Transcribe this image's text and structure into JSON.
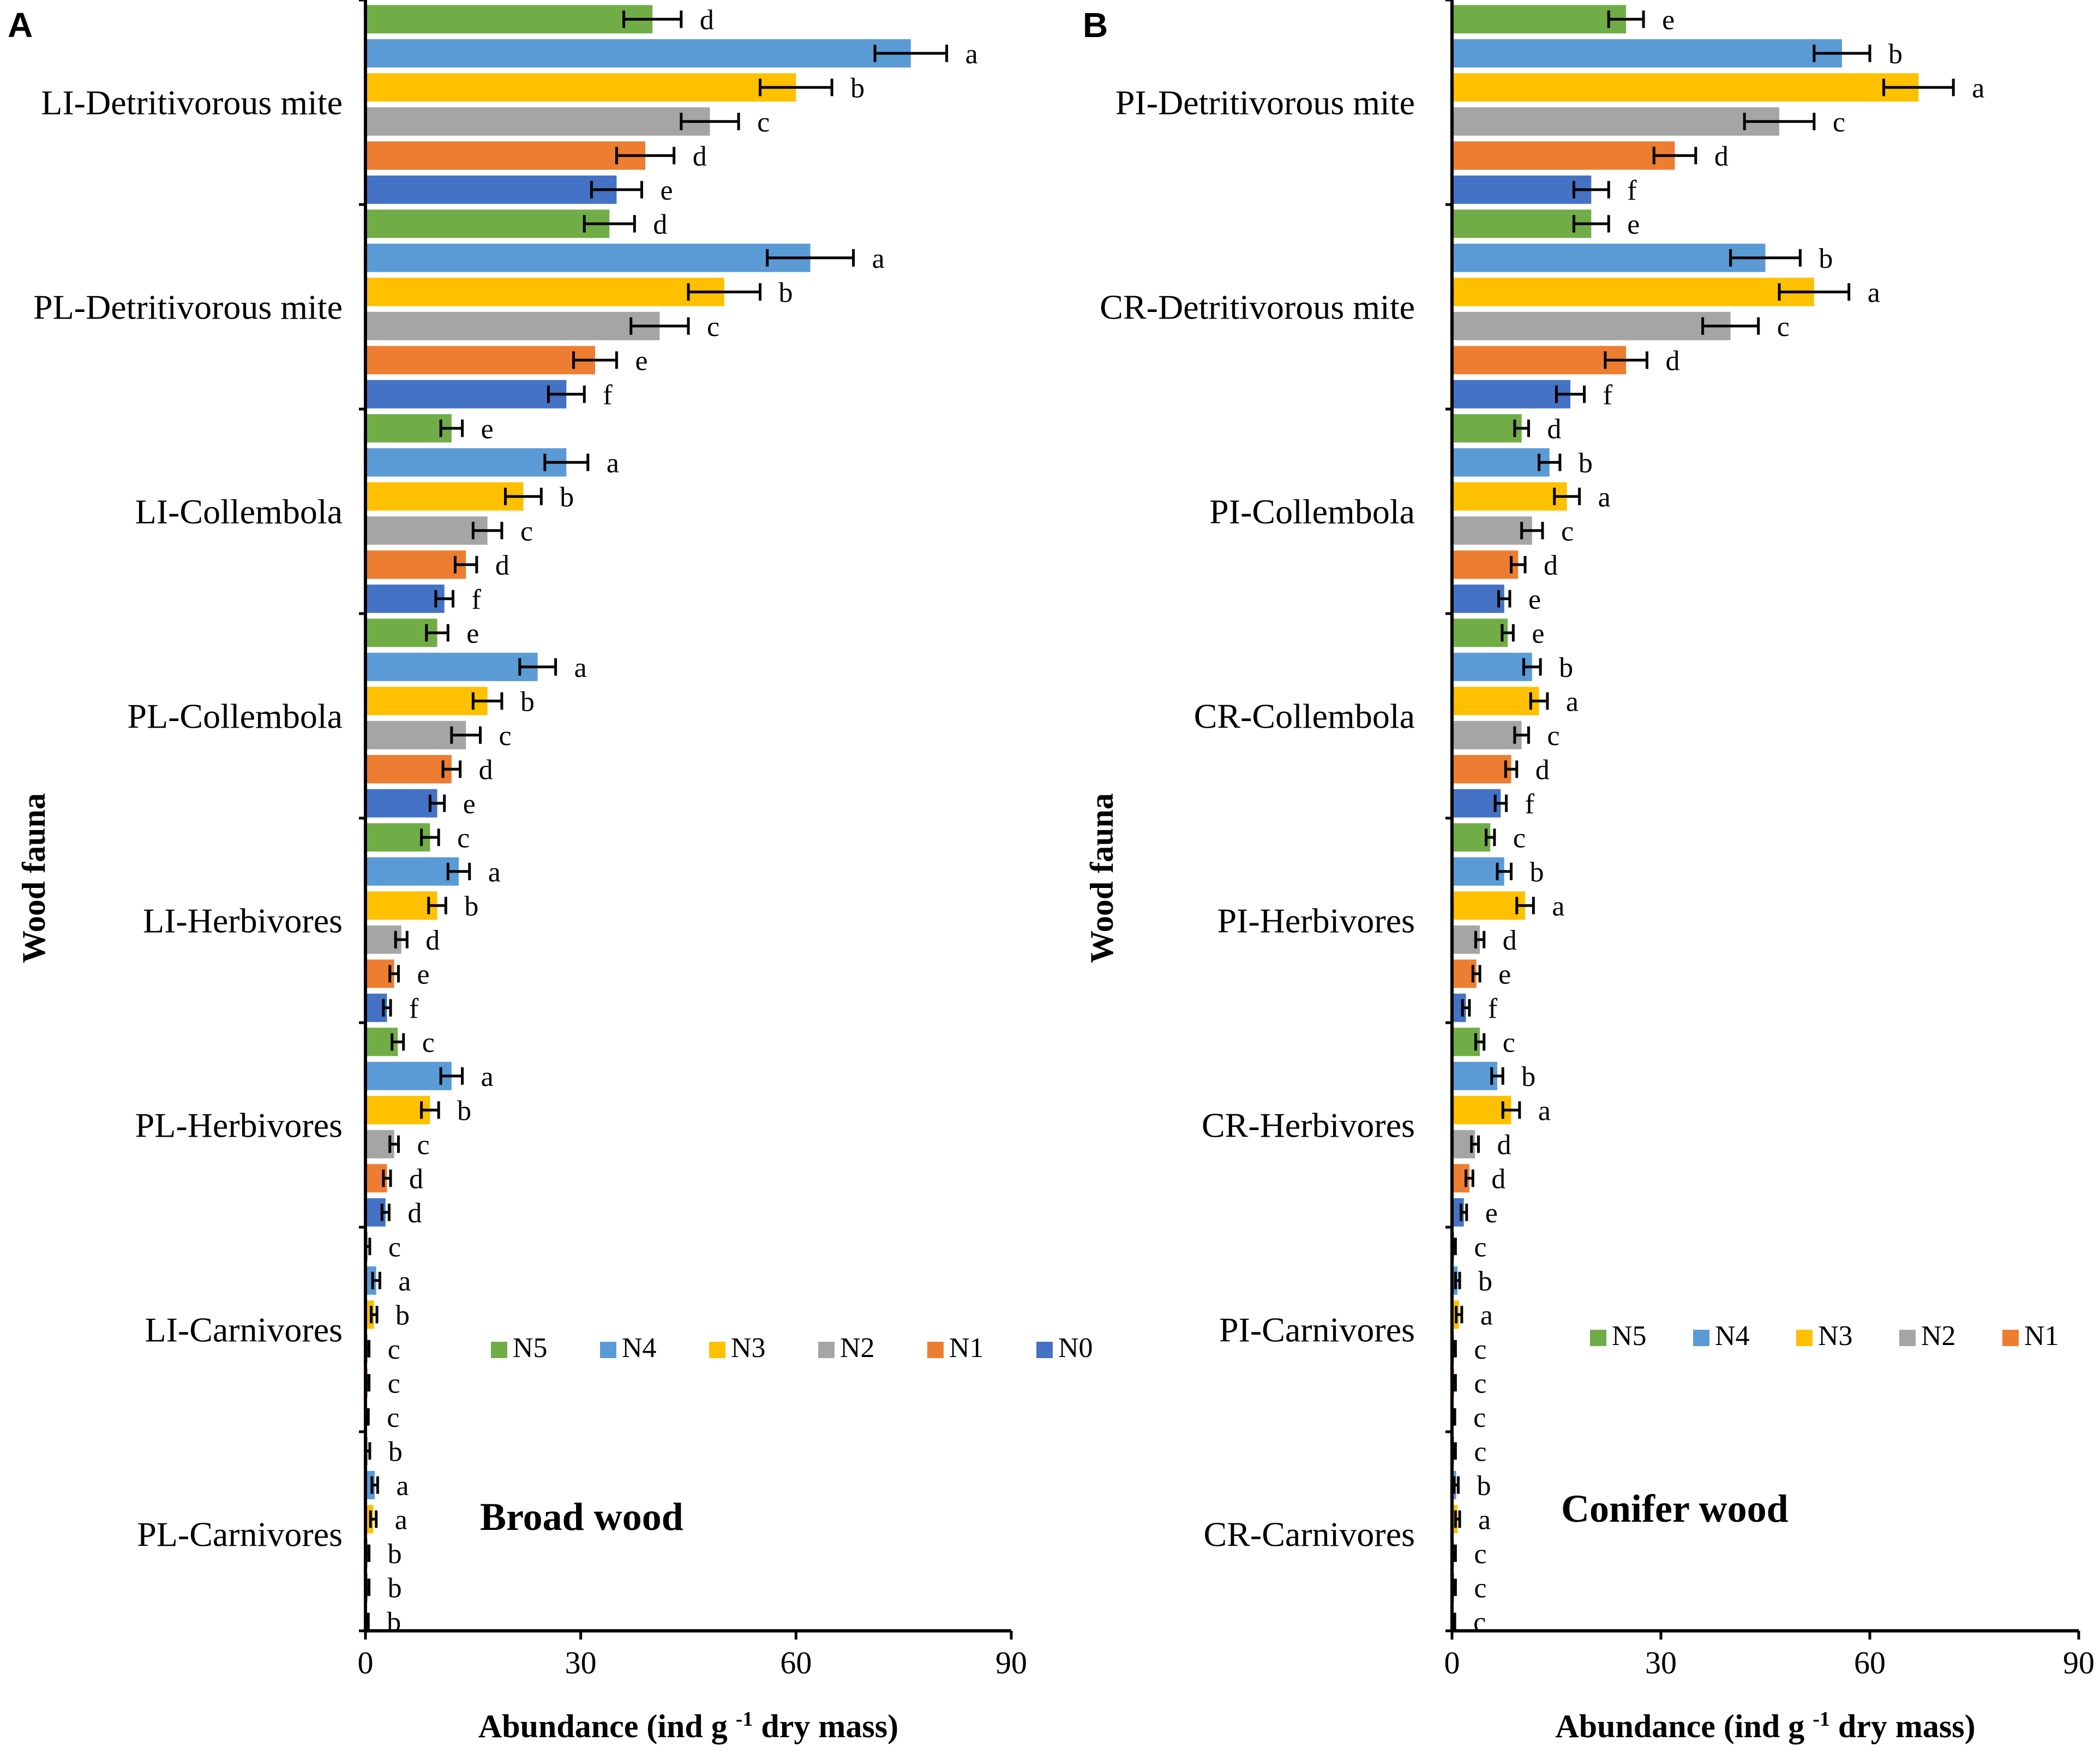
{
  "colors": {
    "N5": "#70AD47",
    "N4": "#5B9BD5",
    "N3": "#FFC000",
    "N2": "#A5A5A5",
    "N1": "#ED7D31",
    "N0": "#4472C4",
    "axis": "#000000"
  },
  "legend": [
    "N5",
    "N4",
    "N3",
    "N2",
    "N1",
    "N0"
  ],
  "y_axis_title": "Wood fauna",
  "chart_data": [
    {
      "type": "bar",
      "orientation": "horizontal",
      "panel_label": "A",
      "title": "Broad wood",
      "xlabel": "Abundance (ind g⁻¹ dry mass)",
      "ylabel": "Wood fauna",
      "xlim": [
        0,
        90
      ],
      "xticks": [
        "0",
        "30",
        "60",
        "90"
      ],
      "categories": [
        "LI-Detritivorous mite",
        "PL-Detritivorous mite",
        "LI-Collembola",
        "PL-Collembola",
        "LI-Herbivores",
        "PL-Herbivores",
        "LI-Carnivores",
        "PL-Carnivores"
      ],
      "series": [
        {
          "name": "N5",
          "values": [
            40,
            34,
            12,
            10,
            9,
            4.5,
            0.3,
            0.3
          ],
          "errors": [
            4,
            3.5,
            1.5,
            1.5,
            1.2,
            0.8,
            0.3,
            0.3
          ],
          "letters": [
            "d",
            "d",
            "e",
            "e",
            "c",
            "c",
            "c",
            "b"
          ]
        },
        {
          "name": "N4",
          "values": [
            76,
            62,
            28,
            24,
            13,
            12,
            1.5,
            1.3
          ],
          "errors": [
            5,
            6,
            3,
            2.5,
            1.5,
            1.5,
            0.5,
            0.4
          ],
          "letters": [
            "a",
            "a",
            "a",
            "a",
            "a",
            "a",
            "a",
            "a"
          ]
        },
        {
          "name": "N3",
          "values": [
            60,
            50,
            22,
            17,
            10,
            9,
            1.2,
            1.1
          ],
          "errors": [
            5,
            5,
            2.5,
            2,
            1.2,
            1.2,
            0.4,
            0.4
          ],
          "letters": [
            "b",
            "b",
            "b",
            "b",
            "b",
            "b",
            "b",
            "a"
          ]
        },
        {
          "name": "N2",
          "values": [
            48,
            41,
            17,
            14,
            5,
            4,
            0.3,
            0.3
          ],
          "errors": [
            4,
            4,
            2,
            2,
            0.8,
            0.6,
            0.2,
            0.2
          ],
          "letters": [
            "c",
            "c",
            "c",
            "c",
            "d",
            "c",
            "c",
            "b"
          ]
        },
        {
          "name": "N1",
          "values": [
            39,
            32,
            14,
            12,
            4,
            3,
            0.3,
            0.3
          ],
          "errors": [
            4,
            3,
            1.5,
            1.2,
            0.6,
            0.5,
            0.2,
            0.2
          ],
          "letters": [
            "d",
            "e",
            "d",
            "d",
            "e",
            "d",
            "c",
            "b"
          ]
        },
        {
          "name": "N0",
          "values": [
            35,
            28,
            11,
            10,
            3,
            2.8,
            0.2,
            0.2
          ],
          "errors": [
            3.5,
            2.5,
            1.2,
            1.0,
            0.5,
            0.5,
            0.2,
            0.2
          ],
          "letters": [
            "e",
            "f",
            "f",
            "e",
            "f",
            "d",
            "c",
            "b"
          ]
        }
      ]
    },
    {
      "type": "bar",
      "orientation": "horizontal",
      "panel_label": "B",
      "title": "Conifer wood",
      "xlabel": "Abundance (ind g⁻¹ dry mass)",
      "ylabel": "Wood fauna",
      "xlim": [
        0,
        90
      ],
      "xticks": [
        "0",
        "30",
        "60",
        "90"
      ],
      "categories": [
        "PI-Detritivorous mite",
        "CR-Detritivorous mite",
        "PI-Collembola",
        "CR-Collembola",
        "PI-Herbivores",
        "CR-Herbivores",
        "PI-Carnivores",
        "CR-Carnivores"
      ],
      "series": [
        {
          "name": "N5",
          "values": [
            25,
            20,
            10,
            8,
            5.5,
            4,
            0.3,
            0.3
          ],
          "errors": [
            2.5,
            2.5,
            1.0,
            0.8,
            0.6,
            0.6,
            0.2,
            0.2
          ],
          "letters": [
            "e",
            "e",
            "d",
            "e",
            "c",
            "c",
            "c",
            "c"
          ]
        },
        {
          "name": "N4",
          "values": [
            56,
            45,
            14,
            11.5,
            7.5,
            6.5,
            0.8,
            0.6
          ],
          "errors": [
            4,
            5,
            1.5,
            1.2,
            1.0,
            0.8,
            0.3,
            0.3
          ],
          "letters": [
            "b",
            "b",
            "b",
            "b",
            "b",
            "b",
            "b",
            "b"
          ]
        },
        {
          "name": "N3",
          "values": [
            67,
            52,
            16.5,
            12.5,
            10.5,
            8.5,
            1.0,
            0.8
          ],
          "errors": [
            5,
            5,
            1.8,
            1.2,
            1.2,
            1.2,
            0.4,
            0.3
          ],
          "letters": [
            "a",
            "a",
            "a",
            "a",
            "a",
            "a",
            "a",
            "a"
          ]
        },
        {
          "name": "N2",
          "values": [
            47,
            40,
            11.5,
            10,
            4,
            3.3,
            0.3,
            0.3
          ],
          "errors": [
            5,
            4,
            1.5,
            1.0,
            0.6,
            0.5,
            0.2,
            0.2
          ],
          "letters": [
            "c",
            "c",
            "c",
            "c",
            "d",
            "d",
            "c",
            "c"
          ]
        },
        {
          "name": "N1",
          "values": [
            32,
            25,
            9.5,
            8.5,
            3.5,
            2.5,
            0.3,
            0.3
          ],
          "errors": [
            3,
            3,
            1.0,
            0.8,
            0.5,
            0.5,
            0.2,
            0.2
          ],
          "letters": [
            "d",
            "d",
            "d",
            "d",
            "e",
            "d",
            "c",
            "c"
          ]
        },
        {
          "name": "N0",
          "values": [
            20,
            17,
            7.5,
            7,
            2,
            1.7,
            0.2,
            0.2
          ],
          "errors": [
            2.5,
            2,
            0.8,
            0.8,
            0.5,
            0.4,
            0.2,
            0.2
          ],
          "letters": [
            "f",
            "f",
            "e",
            "f",
            "f",
            "e",
            "c",
            "c"
          ]
        }
      ]
    }
  ]
}
